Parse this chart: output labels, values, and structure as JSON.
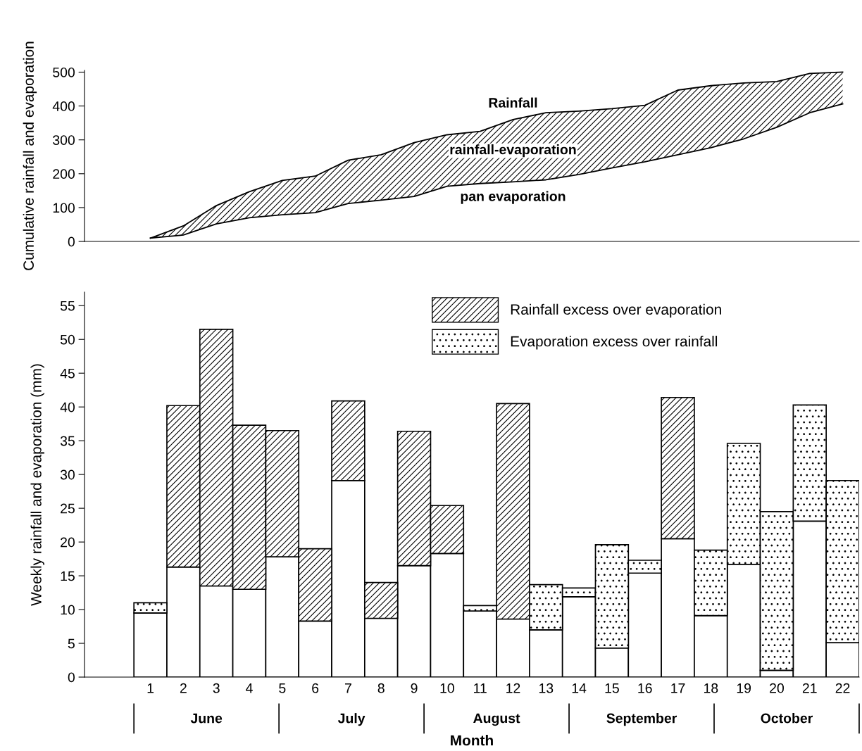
{
  "chart_data": [
    {
      "type": "area",
      "ylabel": "Cumulative rainfall and evaporation",
      "ylim": [
        0,
        505
      ],
      "yticks": [
        0,
        100,
        200,
        300,
        400,
        500
      ],
      "tick_labels": "y",
      "grid": false,
      "categories": [
        null,
        null,
        null,
        null,
        null,
        null,
        null,
        null,
        null,
        null,
        null,
        null,
        null,
        null,
        null,
        null,
        null,
        null,
        null,
        null,
        null,
        null
      ],
      "series": [
        {
          "name": "Rainfall",
          "type": "line",
          "color": "#000000",
          "values": [
            10,
            46,
            106,
            147,
            180,
            193,
            240,
            256,
            292,
            315,
            325,
            360,
            380,
            385,
            392,
            402,
            447,
            460,
            468,
            472,
            496,
            500
          ]
        },
        {
          "name": "pan evaporation",
          "type": "line",
          "color": "#000000",
          "values": [
            10,
            19,
            52,
            70,
            79,
            85,
            112,
            122,
            133,
            163,
            171,
            176,
            182,
            198,
            217,
            235,
            256,
            277,
            303,
            337,
            380,
            406
          ],
          "lower": [
            10,
            19,
            52,
            70,
            79,
            85,
            112,
            122,
            133,
            163,
            171,
            176,
            182,
            198,
            217,
            235,
            256,
            277,
            303,
            337,
            380,
            406
          ],
          "upper": [
            10,
            46,
            106,
            147,
            180,
            193,
            240,
            256,
            292,
            315,
            325,
            360,
            380,
            385,
            392,
            402,
            447,
            460,
            468,
            472,
            496,
            500
          ]
        }
      ],
      "annotations": [
        "rainfall-evaporation"
      ]
    },
    {
      "type": "bar",
      "stacked": true,
      "xlabel": "Month",
      "ylabel": "Weekly rainfall and evaporation (mm)",
      "ylim": [
        0,
        57
      ],
      "yticks": [
        0,
        5,
        10,
        15,
        20,
        25,
        30,
        35,
        40,
        45,
        50,
        55
      ],
      "grid": false,
      "legend": "top right",
      "categories": [
        "1",
        "2",
        "3",
        "4",
        "5",
        "6",
        "7",
        "8",
        "9",
        "10",
        "11",
        "12",
        "13",
        "14",
        "15",
        "16",
        "17",
        "18",
        "19",
        "20",
        "21",
        "22"
      ],
      "series": [
        {
          "color": "#ffffff",
          "values": [
            9.5,
            16.3,
            13.5,
            13.0,
            17.8,
            8.3,
            29.1,
            8.7,
            16.5,
            18.3,
            9.8,
            8.6,
            7.0,
            11.9,
            4.3,
            15.4,
            20.5,
            9.1,
            16.7,
            1.0,
            23.1,
            5.1
          ]
        },
        {
          "name": "Rainfall excess over evaporation",
          "color": "#000000",
          "values": [
            null,
            23.9,
            38.0,
            24.3,
            18.7,
            10.7,
            11.8,
            5.3,
            19.9,
            7.1,
            null,
            31.9,
            null,
            null,
            null,
            null,
            20.9,
            null,
            null,
            null,
            null,
            null
          ]
        },
        {
          "name": "Evaporation excess over rainfall",
          "color": "#000000",
          "values": [
            1.5,
            null,
            null,
            null,
            null,
            null,
            null,
            null,
            null,
            null,
            0.8,
            null,
            6.7,
            1.3,
            15.3,
            1.9,
            null,
            9.7,
            17.9,
            23.5,
            17.2,
            24.0
          ]
        }
      ],
      "annotations": [
        "June",
        "July",
        "August",
        "September",
        "October"
      ]
    }
  ]
}
